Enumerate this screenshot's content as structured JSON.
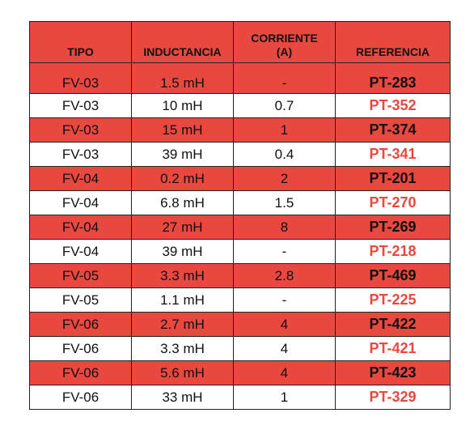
{
  "table": {
    "headers": {
      "tipo": "TIPO",
      "inductancia": "INDUCTANCIA",
      "corriente_line1": "CORRIENTE",
      "corriente_line2": "(A)",
      "referencia": "REFERENCIA"
    },
    "rows": [
      {
        "tipo": "FV-03",
        "inductancia": "1.5 mH",
        "corriente": "-",
        "referencia": "PT-283"
      },
      {
        "tipo": "FV-03",
        "inductancia": "10 mH",
        "corriente": "0.7",
        "referencia": "PT-352"
      },
      {
        "tipo": "FV-03",
        "inductancia": "15 mH",
        "corriente": "1",
        "referencia": "PT-374"
      },
      {
        "tipo": "FV-03",
        "inductancia": "39 mH",
        "corriente": "0.4",
        "referencia": "PT-341"
      },
      {
        "tipo": "FV-04",
        "inductancia": "0.2 mH",
        "corriente": "2",
        "referencia": "PT-201"
      },
      {
        "tipo": "FV-04",
        "inductancia": "6.8 mH",
        "corriente": "1.5",
        "referencia": "PT-270"
      },
      {
        "tipo": "FV-04",
        "inductancia": "27 mH",
        "corriente": "8",
        "referencia": "PT-269"
      },
      {
        "tipo": "FV-04",
        "inductancia": "39 mH",
        "corriente": "-",
        "referencia": "PT-218"
      },
      {
        "tipo": "FV-05",
        "inductancia": "3.3 mH",
        "corriente": "2.8",
        "referencia": "PT-469"
      },
      {
        "tipo": "FV-05",
        "inductancia": "1.1 mH",
        "corriente": "-",
        "referencia": "PT-225"
      },
      {
        "tipo": "FV-06",
        "inductancia": "2.7 mH",
        "corriente": "4",
        "referencia": "PT-422"
      },
      {
        "tipo": "FV-06",
        "inductancia": "3.3 mH",
        "corriente": "4",
        "referencia": "PT-421"
      },
      {
        "tipo": "FV-06",
        "inductancia": "5.6 mH",
        "corriente": "4",
        "referencia": "PT-423"
      },
      {
        "tipo": "FV-06",
        "inductancia": "33 mH",
        "corriente": "1",
        "referencia": "PT-329"
      }
    ]
  },
  "colors": {
    "accent_red": "#e8483f",
    "text_dark": "#111111",
    "border": "#222222"
  }
}
